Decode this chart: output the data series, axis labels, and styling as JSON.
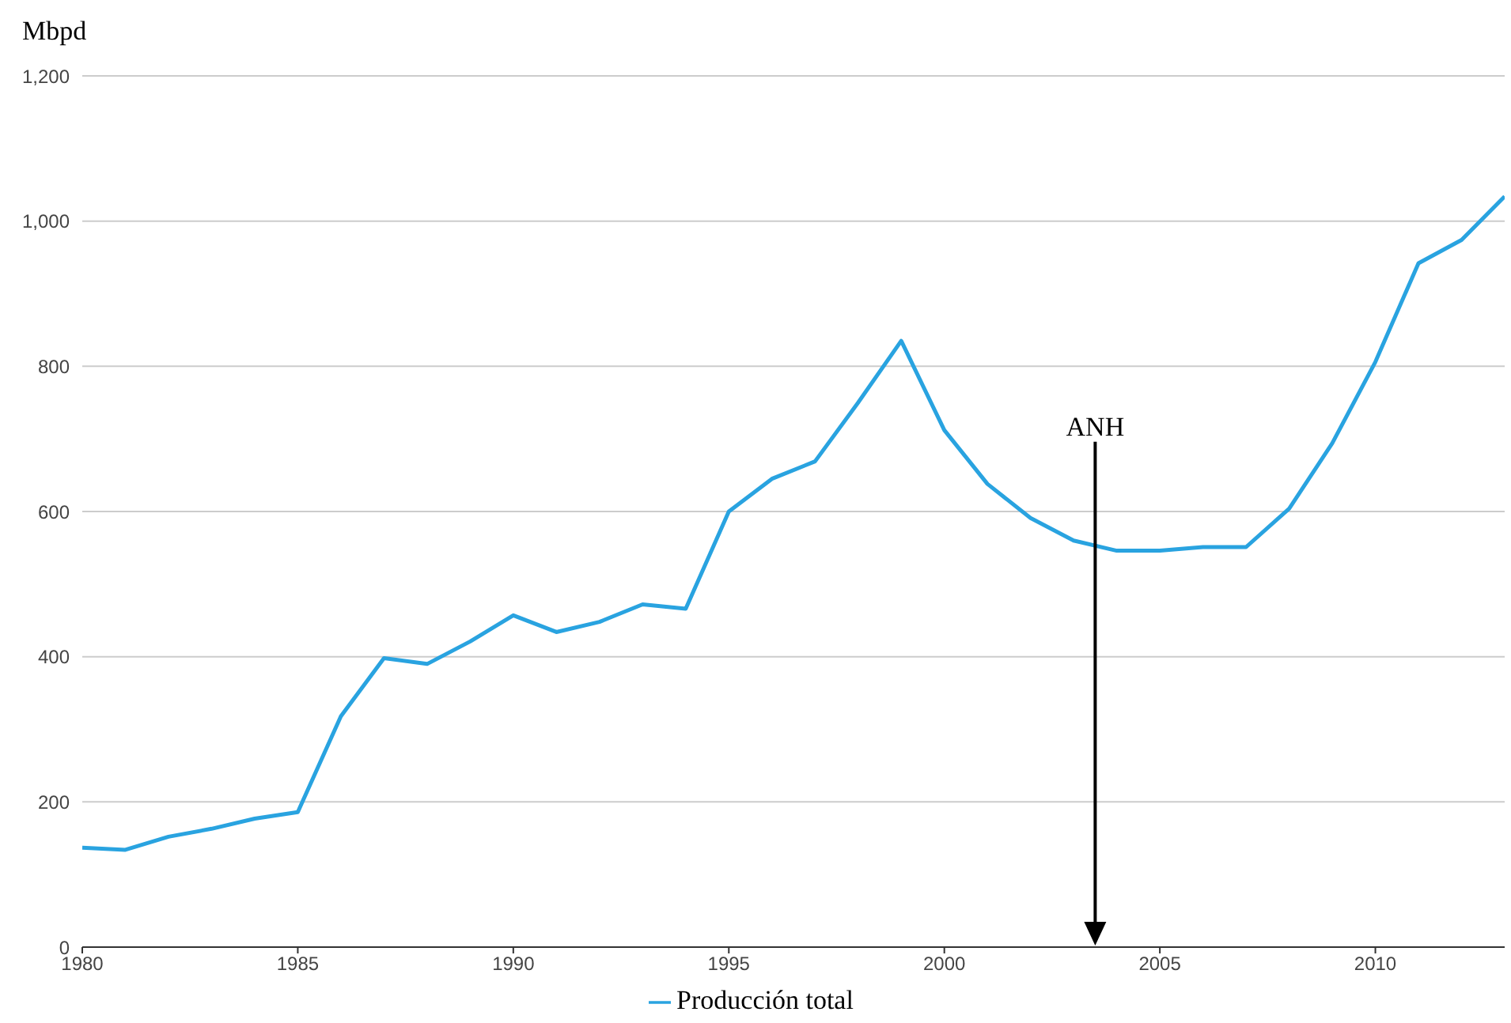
{
  "chart_data": {
    "type": "line",
    "ylabel": "Mbpd",
    "x": [
      1980,
      1981,
      1982,
      1983,
      1984,
      1985,
      1986,
      1987,
      1988,
      1989,
      1990,
      1991,
      1992,
      1993,
      1994,
      1995,
      1996,
      1997,
      1998,
      1999,
      2000,
      2001,
      2002,
      2003,
      2004,
      2005,
      2006,
      2007,
      2008,
      2009,
      2010,
      2011,
      2012,
      2013
    ],
    "series": [
      {
        "name": "Producción total",
        "color": "#29a3e0",
        "values": [
          137,
          134,
          152,
          163,
          177,
          186,
          318,
          398,
          390,
          421,
          457,
          434,
          448,
          472,
          466,
          600,
          645,
          669,
          750,
          835,
          712,
          638,
          591,
          560,
          546,
          546,
          551,
          551,
          604,
          694,
          806,
          942,
          974,
          1034
        ]
      }
    ],
    "xlim": [
      1980,
      2013
    ],
    "xticks": [
      1980,
      1985,
      1990,
      1995,
      2000,
      2005,
      2010
    ],
    "ylim": [
      0,
      1200
    ],
    "yticks": [
      0,
      200,
      400,
      600,
      800,
      {
        "value": 1000,
        "label": "1,000"
      },
      {
        "value": 1200,
        "label": "1,200"
      }
    ],
    "grid": "y",
    "legend": "bottom",
    "marker": "none",
    "line_style": "solid",
    "ref_lines": [
      {
        "axis": "x",
        "value": 2003.5,
        "label": "ANH",
        "color": "#000000"
      }
    ]
  }
}
